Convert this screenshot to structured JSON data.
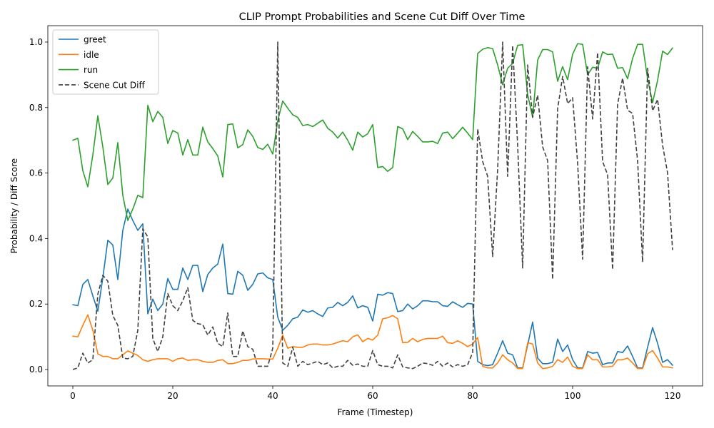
{
  "chart_data": {
    "type": "line",
    "title": "CLIP Prompt Probabilities and Scene Cut Diff Over Time",
    "xlabel": "Frame (Timestep)",
    "ylabel": "Probability / Diff Score",
    "xlim": [
      -5,
      126
    ],
    "ylim": [
      -0.05,
      1.05
    ],
    "xticks": [
      0,
      20,
      40,
      60,
      80,
      100,
      120
    ],
    "yticks": [
      0.0,
      0.2,
      0.4,
      0.6,
      0.8,
      1.0
    ],
    "xtick_labels": [
      "0",
      "20",
      "40",
      "60",
      "80",
      "100",
      "120"
    ],
    "ytick_labels": [
      "0.0",
      "0.2",
      "0.4",
      "0.6",
      "0.8",
      "1.0"
    ],
    "grid": false,
    "legend_position": "top-left",
    "x_start": 0,
    "series": [
      {
        "name": "greet",
        "color": "#1f77b4",
        "style": "solid",
        "values": [
          0.198,
          0.195,
          0.26,
          0.275,
          0.225,
          0.178,
          0.28,
          0.395,
          0.38,
          0.275,
          0.425,
          0.49,
          0.455,
          0.425,
          0.445,
          0.17,
          0.215,
          0.18,
          0.2,
          0.278,
          0.245,
          0.245,
          0.31,
          0.275,
          0.318,
          0.318,
          0.238,
          0.29,
          0.31,
          0.322,
          0.383,
          0.232,
          0.23,
          0.3,
          0.288,
          0.242,
          0.26,
          0.292,
          0.295,
          0.28,
          0.275,
          0.16,
          0.12,
          0.135,
          0.155,
          0.16,
          0.182,
          0.175,
          0.18,
          0.17,
          0.162,
          0.188,
          0.19,
          0.205,
          0.195,
          0.205,
          0.225,
          0.188,
          0.195,
          0.19,
          0.148,
          0.23,
          0.227,
          0.235,
          0.232,
          0.177,
          0.18,
          0.2,
          0.185,
          0.195,
          0.21,
          0.21,
          0.207,
          0.207,
          0.195,
          0.193,
          0.207,
          0.198,
          0.19,
          0.202,
          0.2,
          0.025,
          0.015,
          0.012,
          0.015,
          0.05,
          0.088,
          0.05,
          0.045,
          0.005,
          0.005,
          0.075,
          0.145,
          0.035,
          0.018,
          0.018,
          0.022,
          0.093,
          0.055,
          0.075,
          0.03,
          0.005,
          0.005,
          0.055,
          0.05,
          0.052,
          0.015,
          0.02,
          0.02,
          0.055,
          0.052,
          0.072,
          0.04,
          0.005,
          0.005,
          0.068,
          0.128,
          0.08,
          0.022,
          0.03,
          0.013
        ]
      },
      {
        "name": "idle",
        "color": "#ff7f0e",
        "style": "solid",
        "values": [
          0.102,
          0.1,
          0.135,
          0.167,
          0.12,
          0.048,
          0.04,
          0.04,
          0.033,
          0.033,
          0.045,
          0.057,
          0.05,
          0.043,
          0.03,
          0.025,
          0.03,
          0.033,
          0.033,
          0.033,
          0.025,
          0.033,
          0.035,
          0.028,
          0.03,
          0.03,
          0.025,
          0.022,
          0.022,
          0.028,
          0.03,
          0.018,
          0.018,
          0.022,
          0.028,
          0.028,
          0.032,
          0.033,
          0.033,
          0.032,
          0.032,
          0.065,
          0.105,
          0.065,
          0.07,
          0.068,
          0.068,
          0.075,
          0.078,
          0.078,
          0.075,
          0.075,
          0.078,
          0.083,
          0.088,
          0.085,
          0.1,
          0.106,
          0.085,
          0.095,
          0.09,
          0.105,
          0.155,
          0.158,
          0.165,
          0.155,
          0.082,
          0.083,
          0.095,
          0.085,
          0.092,
          0.095,
          0.095,
          0.095,
          0.102,
          0.082,
          0.08,
          0.088,
          0.08,
          0.07,
          0.078,
          0.098,
          0.01,
          0.005,
          0.005,
          0.02,
          0.045,
          0.03,
          0.02,
          0.003,
          0.003,
          0.082,
          0.078,
          0.02,
          0.003,
          0.005,
          0.01,
          0.03,
          0.022,
          0.038,
          0.01,
          0.003,
          0.003,
          0.045,
          0.03,
          0.03,
          0.008,
          0.008,
          0.01,
          0.03,
          0.03,
          0.035,
          0.02,
          0.003,
          0.003,
          0.048,
          0.058,
          0.035,
          0.008,
          0.008,
          0.005
        ]
      },
      {
        "name": "run",
        "color": "#2ca02c",
        "style": "solid",
        "values": [
          0.7,
          0.706,
          0.607,
          0.558,
          0.655,
          0.775,
          0.68,
          0.565,
          0.585,
          0.693,
          0.532,
          0.455,
          0.49,
          0.532,
          0.525,
          0.807,
          0.757,
          0.788,
          0.77,
          0.69,
          0.73,
          0.722,
          0.655,
          0.702,
          0.655,
          0.655,
          0.74,
          0.695,
          0.675,
          0.652,
          0.588,
          0.748,
          0.75,
          0.677,
          0.687,
          0.732,
          0.712,
          0.678,
          0.672,
          0.688,
          0.658,
          0.76,
          0.82,
          0.798,
          0.778,
          0.77,
          0.745,
          0.748,
          0.742,
          0.752,
          0.762,
          0.737,
          0.725,
          0.707,
          0.725,
          0.7,
          0.67,
          0.725,
          0.71,
          0.72,
          0.748,
          0.617,
          0.62,
          0.605,
          0.617,
          0.742,
          0.735,
          0.702,
          0.727,
          0.712,
          0.695,
          0.695,
          0.697,
          0.69,
          0.722,
          0.725,
          0.705,
          0.722,
          0.74,
          0.722,
          0.702,
          0.965,
          0.978,
          0.983,
          0.98,
          0.93,
          0.87,
          0.92,
          0.935,
          0.99,
          0.992,
          0.84,
          0.77,
          0.945,
          0.977,
          0.977,
          0.97,
          0.88,
          0.925,
          0.885,
          0.963,
          0.995,
          0.993,
          0.9,
          0.923,
          0.92,
          0.97,
          0.962,
          0.963,
          0.92,
          0.922,
          0.888,
          0.95,
          0.993,
          0.993,
          0.887,
          0.815,
          0.883,
          0.972,
          0.962,
          0.982
        ]
      },
      {
        "name": "Scene Cut Diff",
        "color": "#404040",
        "style": "dashed",
        "values": [
          0.0,
          0.005,
          0.05,
          0.02,
          0.03,
          0.23,
          0.288,
          0.27,
          0.165,
          0.135,
          0.035,
          0.033,
          0.04,
          0.12,
          0.43,
          0.405,
          0.095,
          0.055,
          0.1,
          0.232,
          0.195,
          0.18,
          0.21,
          0.25,
          0.15,
          0.14,
          0.137,
          0.105,
          0.13,
          0.08,
          0.07,
          0.173,
          0.04,
          0.04,
          0.118,
          0.07,
          0.062,
          0.01,
          0.01,
          0.01,
          0.065,
          1.0,
          0.02,
          0.01,
          0.068,
          0.01,
          0.025,
          0.015,
          0.02,
          0.025,
          0.015,
          0.02,
          0.005,
          0.01,
          0.01,
          0.028,
          0.013,
          0.017,
          0.01,
          0.01,
          0.058,
          0.015,
          0.01,
          0.01,
          0.005,
          0.045,
          0.008,
          0.005,
          0.003,
          0.01,
          0.02,
          0.018,
          0.013,
          0.025,
          0.01,
          0.02,
          0.008,
          0.015,
          0.01,
          0.015,
          0.052,
          0.735,
          0.635,
          0.59,
          0.345,
          0.612,
          1.0,
          0.59,
          0.99,
          0.685,
          0.31,
          0.93,
          0.77,
          0.838,
          0.68,
          0.638,
          0.275,
          0.797,
          0.895,
          0.812,
          0.83,
          0.63,
          0.337,
          0.925,
          0.765,
          0.968,
          0.635,
          0.595,
          0.305,
          0.81,
          0.89,
          0.792,
          0.782,
          0.638,
          0.328,
          0.92,
          0.79,
          0.825,
          0.685,
          0.6,
          0.365
        ]
      }
    ]
  }
}
